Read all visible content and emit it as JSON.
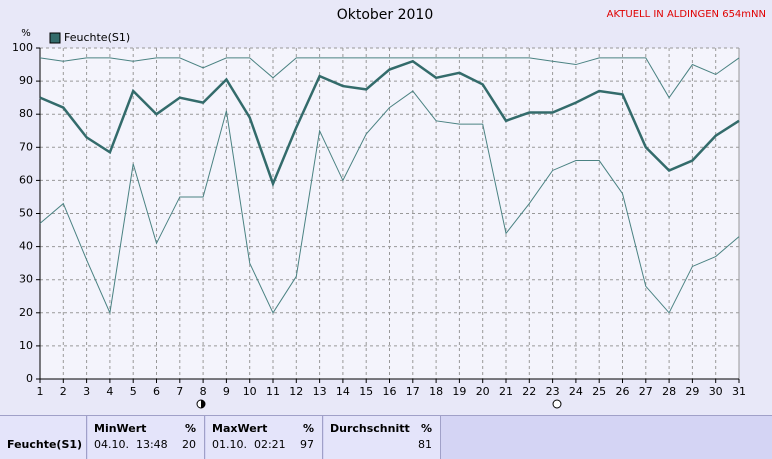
{
  "chart_data": {
    "type": "line",
    "title": "Oktober 2010",
    "annotation": "AKTUELL IN ALDINGEN 654mNN",
    "y_label": "%",
    "x": [
      1,
      2,
      3,
      4,
      5,
      6,
      7,
      8,
      9,
      10,
      11,
      12,
      13,
      14,
      15,
      16,
      17,
      18,
      19,
      20,
      21,
      22,
      23,
      24,
      25,
      26,
      27,
      28,
      29,
      30,
      31
    ],
    "xlim": [
      1,
      31
    ],
    "xticks": [
      1,
      2,
      3,
      4,
      5,
      6,
      7,
      8,
      9,
      10,
      11,
      12,
      13,
      14,
      15,
      16,
      17,
      18,
      19,
      20,
      21,
      22,
      23,
      24,
      25,
      26,
      27,
      28,
      29,
      30,
      31
    ],
    "ylim": [
      0,
      100
    ],
    "yticks": [
      0,
      10,
      20,
      30,
      40,
      50,
      60,
      70,
      80,
      90,
      100
    ],
    "grid": true,
    "series": [
      {
        "name": "Feuchte(S1)",
        "color": "#336b6b",
        "width": 2.5,
        "values": [
          85,
          82,
          73,
          68.5,
          87,
          80,
          85,
          83.5,
          90.5,
          79,
          59,
          76,
          91.5,
          88.5,
          87.5,
          93.5,
          96,
          91,
          92.5,
          89,
          78,
          80.5,
          80.5,
          83.5,
          87,
          86,
          70,
          63,
          66,
          73.5,
          78
        ]
      },
      {
        "color": "#4a8282",
        "width": 1,
        "values": [
          97,
          96,
          97,
          97,
          96,
          97,
          97,
          94,
          97,
          97,
          91,
          97,
          97,
          97,
          97,
          97,
          97,
          97,
          97,
          97,
          97,
          97,
          96,
          95,
          97,
          97,
          97,
          85,
          95,
          92,
          97
        ]
      },
      {
        "color": "#4a8282",
        "width": 1,
        "values": [
          47,
          53,
          36,
          20,
          65,
          41,
          55,
          55,
          81,
          35,
          20,
          31,
          75,
          60,
          74,
          82,
          87,
          78,
          77,
          77,
          44,
          53,
          63,
          66,
          66,
          56,
          28,
          20,
          34,
          37,
          43
        ]
      }
    ]
  },
  "summary": {
    "label": "Feuchte(S1)",
    "columns": [
      {
        "header": "MinWert",
        "unit": "%",
        "time": "04.10.  13:48",
        "value": 20
      },
      {
        "header": "MaxWert",
        "unit": "%",
        "time": "01.10.  02:21",
        "value": 97
      },
      {
        "header": "Durchschnitt",
        "unit": "%",
        "value": 81
      }
    ]
  }
}
